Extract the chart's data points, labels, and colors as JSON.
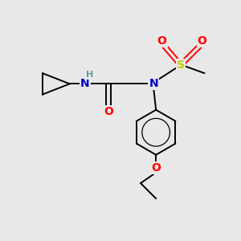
{
  "background_color": "#e8e8e8",
  "atom_colors": {
    "C": "#000000",
    "N": "#0000cc",
    "O": "#ff0000",
    "S": "#cccc00",
    "H": "#5f9ea0"
  },
  "bond_color": "#000000",
  "figsize": [
    3.0,
    3.0
  ],
  "dpi": 100,
  "lw": 1.4
}
